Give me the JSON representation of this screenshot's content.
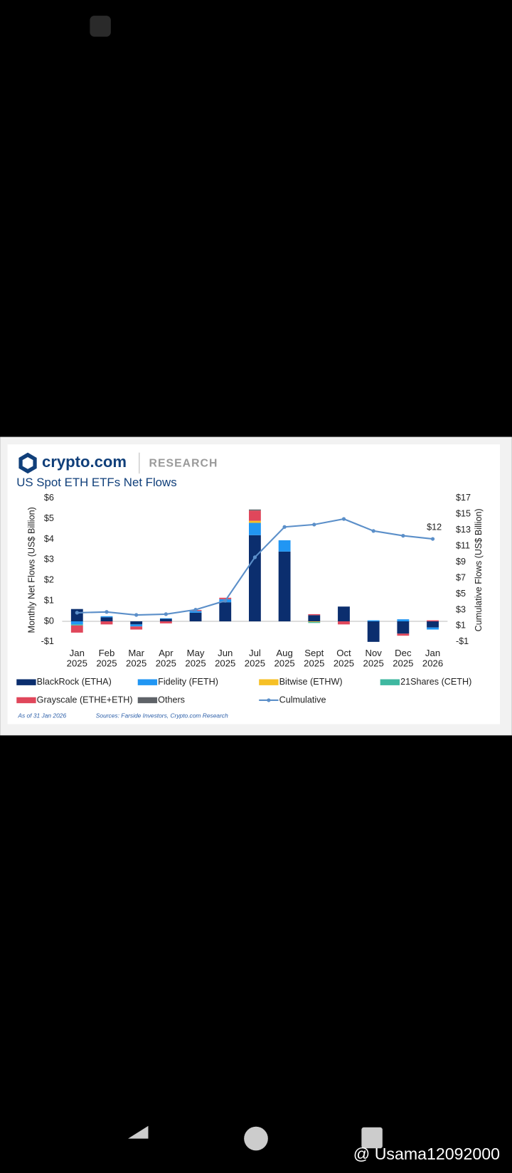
{
  "brand": "crypto.com",
  "brand_section": "RESEARCH",
  "watermark": "@ Usama12092000",
  "chart_data": {
    "type": "bar",
    "title": "US Spot ETH ETFs Net Flows",
    "y_label": "Monthly Net Flows (US$ Billion)",
    "y2_label": "Cumulative Flows (US$ Billion)",
    "annotation": "$12",
    "note": "As of 31 Jan 2026",
    "source": "Sources: Farside Investors, Crypto.com Research",
    "categories": [
      "Jan 2025",
      "Feb 2025",
      "Mar 2025",
      "Apr 2025",
      "May 2025",
      "Jun 2025",
      "Jul 2025",
      "Aug 2025",
      "Sept 2025",
      "Oct 2025",
      "Nov 2025",
      "Dec 2025",
      "Jan 2026"
    ],
    "ylim": [
      -1,
      6
    ],
    "yticks": [
      {
        "value": -1,
        "label": "-$1"
      },
      {
        "value": 0,
        "label": "$0"
      },
      {
        "value": 1,
        "label": "$1"
      },
      {
        "value": 2,
        "label": "$2"
      },
      {
        "value": 3,
        "label": "$3"
      },
      {
        "value": 4,
        "label": "$4"
      },
      {
        "value": 5,
        "label": "$5"
      },
      {
        "value": 6,
        "label": "$6"
      }
    ],
    "y2lim": [
      -1,
      17
    ],
    "y2ticks": [
      {
        "value": -1,
        "label": "-$1"
      },
      {
        "value": 1,
        "label": "$1"
      },
      {
        "value": 3,
        "label": "$3"
      },
      {
        "value": 5,
        "label": "$5"
      },
      {
        "value": 7,
        "label": "$7"
      },
      {
        "value": 9,
        "label": "$9"
      },
      {
        "value": 11,
        "label": "$11"
      },
      {
        "value": 13,
        "label": "$13"
      },
      {
        "value": 15,
        "label": "$15"
      },
      {
        "value": 17,
        "label": "$17"
      }
    ],
    "series": [
      {
        "name": "BlackRock (ETHA)",
        "color": "#0b2e6e",
        "values": [
          0.6,
          0.2,
          -0.15,
          0.12,
          0.42,
          0.93,
          4.2,
          3.4,
          0.3,
          0.72,
          -1.0,
          -0.6,
          -0.3
        ]
      },
      {
        "name": "Fidelity (FETH)",
        "color": "#2196f3",
        "values": [
          -0.15,
          0.05,
          -0.1,
          0.03,
          0.08,
          0.15,
          0.6,
          0.55,
          0,
          0,
          0.05,
          0.1,
          -0.1
        ]
      },
      {
        "name": "Bitwise (ETHW)",
        "color": "#f6c026",
        "values": [
          0,
          0,
          0,
          0,
          0,
          0,
          0.1,
          0,
          -0.03,
          0,
          0,
          0,
          0
        ]
      },
      {
        "name": "21Shares (CETH)",
        "color": "#3fb8a0",
        "values": [
          -0.05,
          0,
          0,
          0,
          0,
          0,
          0,
          0,
          -0.05,
          0,
          0,
          0,
          0
        ]
      },
      {
        "name": "Grayscale (ETHE+ETH)",
        "color": "#e0475b",
        "values": [
          -0.35,
          -0.15,
          -0.15,
          -0.1,
          0.05,
          0.07,
          0.5,
          0,
          0.05,
          -0.15,
          0,
          -0.1,
          0.05
        ]
      },
      {
        "name": "Others",
        "color": "#5f6368",
        "values": [
          0,
          0,
          0,
          0,
          0,
          0,
          0.05,
          0,
          0,
          0,
          0,
          0,
          0
        ]
      },
      {
        "name": "Culmulative",
        "color": "#5b8fc9",
        "type": "line",
        "axis": "y2",
        "values": [
          2.65,
          2.75,
          2.37,
          2.47,
          3.03,
          4.15,
          9.6,
          13.4,
          13.7,
          14.4,
          12.9,
          12.3,
          11.9
        ]
      }
    ]
  }
}
